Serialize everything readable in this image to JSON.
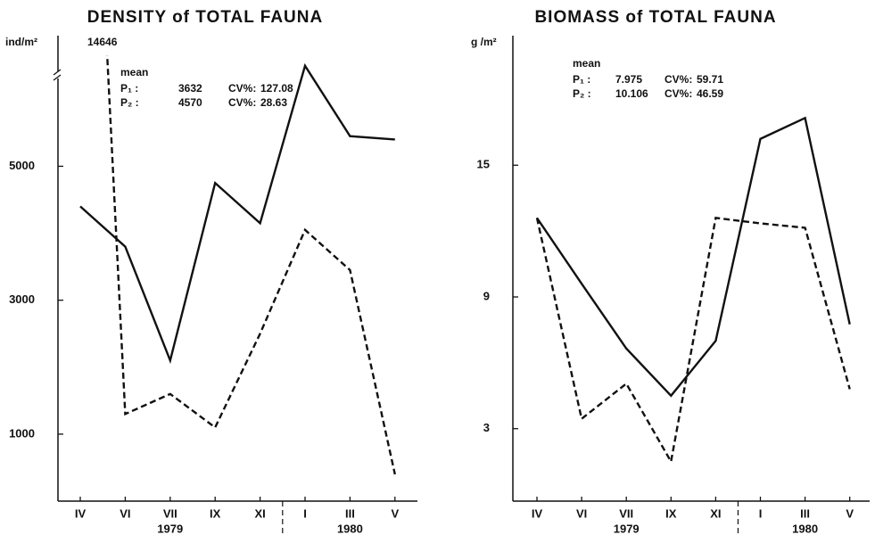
{
  "chart_data": [
    {
      "type": "line",
      "title": "DENSITY of TOTAL FAUNA",
      "y_label": "ind/m²",
      "categories": [
        "IV",
        "VI",
        "VII",
        "IX",
        "XI",
        "I",
        "III",
        "V"
      ],
      "years": [
        {
          "label": "1979",
          "from": "IV"
        },
        {
          "label": "1980",
          "from": "I"
        }
      ],
      "ylim": [
        0,
        6950
      ],
      "yticks": [
        1000,
        3000,
        5000
      ],
      "axis_break": true,
      "annotation": "14646",
      "stats_heading": "mean",
      "cv_label": "CV%:",
      "series": [
        {
          "name": "P₁ :",
          "style": "dashed",
          "color": "#111",
          "mean": 3632,
          "cv": 127.08,
          "values": [
            14646,
            1300,
            1600,
            1100,
            2500,
            4050,
            3450,
            400
          ]
        },
        {
          "name": "P₂ :",
          "style": "solid",
          "color": "#111",
          "mean": 4570,
          "cv": 28.63,
          "values": [
            4400,
            3800,
            2100,
            4750,
            4150,
            6500,
            5450,
            5400
          ]
        }
      ]
    },
    {
      "type": "line",
      "title": "BIOMASS of TOTAL FAUNA",
      "y_label": "g /m²",
      "categories": [
        "IV",
        "VI",
        "VII",
        "IX",
        "XI",
        "I",
        "III",
        "V"
      ],
      "years": [
        {
          "label": "1979",
          "from": "IV"
        },
        {
          "label": "1980",
          "from": "I"
        }
      ],
      "ylim": [
        -0.3,
        20.9
      ],
      "yticks": [
        3,
        9,
        15
      ],
      "axis_break": false,
      "stats_heading": "mean",
      "cv_label": "CV%:",
      "series": [
        {
          "name": "P₁ :",
          "style": "dashed",
          "color": "#111",
          "mean": 7.975,
          "cv": 59.71,
          "values": [
            12.6,
            3.45,
            5.05,
            1.5,
            12.6,
            12.35,
            12.15,
            4.8
          ]
        },
        {
          "name": "P₂ :",
          "style": "solid",
          "color": "#111",
          "mean": 10.106,
          "cv": 46.59,
          "values": [
            12.6,
            9.6,
            6.65,
            4.5,
            7.0,
            16.2,
            17.15,
            7.75
          ]
        }
      ]
    }
  ]
}
